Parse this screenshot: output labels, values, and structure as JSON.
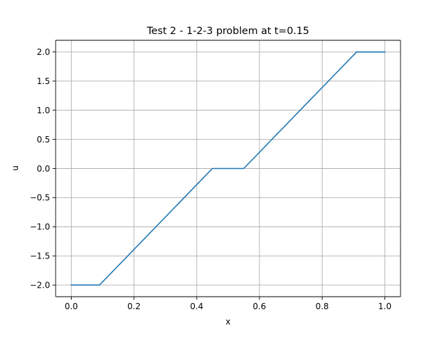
{
  "chart_data": {
    "type": "line",
    "title": "Test 2 - 1-2-3 problem at t=0.15",
    "xlabel": "x",
    "ylabel": "u",
    "xlim": [
      -0.05,
      1.05
    ],
    "ylim": [
      -2.2,
      2.2
    ],
    "grid": true,
    "legend": "none",
    "x_ticks": [
      0.0,
      0.2,
      0.4,
      0.6,
      0.8,
      1.0
    ],
    "x_tick_labels": [
      "0.0",
      "0.2",
      "0.4",
      "0.6",
      "0.8",
      "1.0"
    ],
    "y_ticks": [
      -2.0,
      -1.5,
      -1.0,
      -0.5,
      0.0,
      0.5,
      1.0,
      1.5,
      2.0
    ],
    "y_tick_labels": [
      "−2.0",
      "−1.5",
      "−1.0",
      "−0.5",
      "0.0",
      "0.5",
      "1.0",
      "1.5",
      "2.0"
    ],
    "series": [
      {
        "color": "#1f77b4",
        "x": [
          0.0,
          0.09,
          0.45,
          0.55,
          0.91,
          1.0
        ],
        "y": [
          -2.0,
          -2.0,
          0.0,
          0.0,
          2.0,
          2.0
        ]
      }
    ],
    "colors": {
      "grid": "#b0b0b0",
      "axes": "#000000",
      "line": "#1f77b4"
    }
  }
}
